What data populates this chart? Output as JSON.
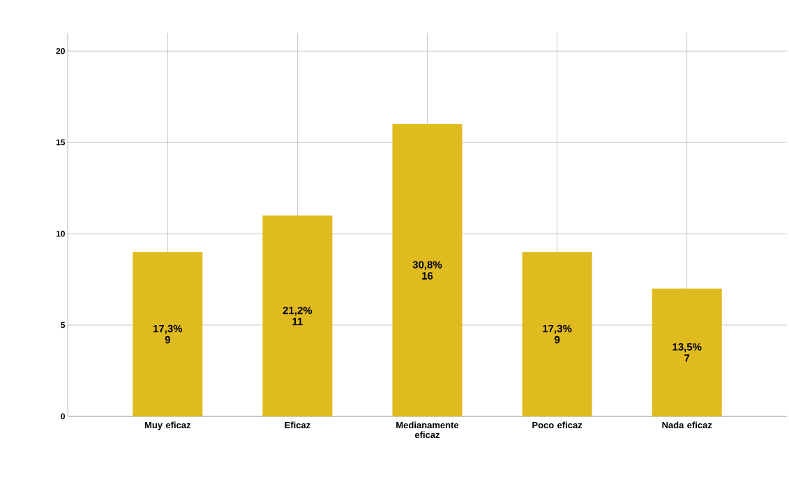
{
  "chart_data": {
    "type": "bar",
    "categories": [
      "Muy eficaz",
      "Eficaz",
      "Medianamente eficaz",
      "Poco eficaz",
      "Nada eficaz"
    ],
    "values": [
      9,
      11,
      16,
      9,
      7
    ],
    "value_labels": [
      "17,3% 9",
      "21,2% 11",
      "30,8% 16",
      "17,3% 9",
      "13,5% 7"
    ],
    "color": "#e0bb1f",
    "ylim": [
      0,
      21
    ],
    "yticks": [
      0,
      5,
      10,
      15,
      20
    ],
    "grid": true
  }
}
